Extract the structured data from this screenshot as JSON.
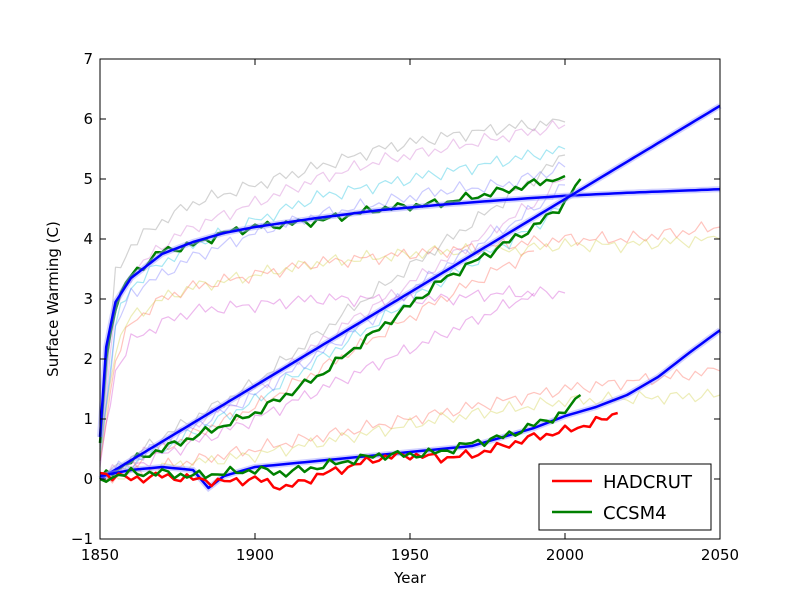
{
  "chart_data": {
    "type": "line",
    "title": "",
    "xlabel": "Year",
    "ylabel": "Surface Warming (C)",
    "xlim": [
      1850,
      2050
    ],
    "ylim": [
      -1,
      7
    ],
    "xticks": [
      1850,
      1900,
      1950,
      2000,
      2050
    ],
    "yticks": [
      -1,
      0,
      1,
      2,
      3,
      4,
      5,
      6,
      7
    ],
    "grid": false,
    "legend": {
      "position": "lower-right",
      "entries": [
        {
          "label": "HADCRUT",
          "color": "#ff0000"
        },
        {
          "label": "CCSM4",
          "color": "#008000"
        }
      ]
    },
    "series": [
      {
        "name": "HADCRUT",
        "color": "#ff0000",
        "x": [
          1850,
          1860,
          1870,
          1880,
          1890,
          1900,
          1910,
          1920,
          1930,
          1940,
          1950,
          1960,
          1970,
          1980,
          1990,
          2000,
          2010,
          2017
        ],
        "y": [
          0.1,
          0.0,
          0.05,
          0.0,
          -0.05,
          0.0,
          -0.15,
          0.05,
          0.2,
          0.35,
          0.4,
          0.35,
          0.4,
          0.55,
          0.7,
          0.8,
          0.95,
          1.1
        ]
      },
      {
        "name": "CCSM4",
        "color": "#008000",
        "x": [
          1850,
          1860,
          1870,
          1880,
          1890,
          1900,
          1910,
          1920,
          1930,
          1940,
          1950,
          1960,
          1970,
          1980,
          1990,
          2000,
          2005
        ],
        "y": [
          0.0,
          0.1,
          0.1,
          0.05,
          0.1,
          0.15,
          0.1,
          0.2,
          0.3,
          0.4,
          0.4,
          0.45,
          0.6,
          0.7,
          0.9,
          1.1,
          1.4
        ]
      },
      {
        "color": "#008000",
        "x": [
          1850,
          1852,
          1855,
          1860,
          1870,
          1880,
          1890,
          1900,
          1920,
          1940,
          1960,
          1980,
          2000
        ],
        "y": [
          0.6,
          2.0,
          2.9,
          3.4,
          3.8,
          3.9,
          4.1,
          4.2,
          4.3,
          4.5,
          4.6,
          4.8,
          5.05
        ]
      },
      {
        "color": "#008000",
        "x": [
          1850,
          1860,
          1870,
          1880,
          1890,
          1900,
          1910,
          1920,
          1930,
          1940,
          1950,
          1960,
          1970,
          1980,
          1990,
          2000,
          2005
        ],
        "y": [
          0.0,
          0.3,
          0.5,
          0.7,
          0.9,
          1.1,
          1.4,
          1.7,
          2.1,
          2.5,
          2.9,
          3.3,
          3.6,
          3.9,
          4.2,
          4.6,
          5.0
        ]
      },
      {
        "color": "#0000ff",
        "x": [
          1850,
          1852,
          1855,
          1860,
          1870,
          1880,
          1890,
          1900,
          1920,
          1940,
          1960,
          1980,
          2000,
          2020,
          2050
        ],
        "y": [
          0.7,
          2.2,
          2.95,
          3.35,
          3.75,
          3.95,
          4.1,
          4.2,
          4.35,
          4.48,
          4.57,
          4.65,
          4.72,
          4.77,
          4.83
        ]
      },
      {
        "color": "#0000ff",
        "x": [
          1850,
          2050
        ],
        "y": [
          0.0,
          6.22
        ]
      },
      {
        "color": "#0000ff",
        "x": [
          1850,
          1860,
          1870,
          1880,
          1885,
          1890,
          1900,
          1910,
          1920,
          1930,
          1940,
          1950,
          1960,
          1970,
          1980,
          1990,
          2000,
          2010,
          2020,
          2030,
          2040,
          2050
        ],
        "y": [
          0.05,
          0.15,
          0.2,
          0.15,
          -0.15,
          0.05,
          0.2,
          0.25,
          0.3,
          0.35,
          0.4,
          0.45,
          0.5,
          0.55,
          0.7,
          0.85,
          1.05,
          1.2,
          1.4,
          1.7,
          2.1,
          2.48
        ]
      },
      {
        "color": "#808080",
        "x": [
          1850,
          1855,
          1860,
          1870,
          1880,
          1900,
          1920,
          1940,
          1960,
          1980,
          2000
        ],
        "y": [
          0.5,
          3.4,
          3.9,
          4.3,
          4.6,
          4.9,
          5.2,
          5.5,
          5.7,
          5.85,
          5.95
        ]
      },
      {
        "color": "#cc66cc",
        "x": [
          1850,
          1855,
          1860,
          1870,
          1880,
          1900,
          1920,
          1940,
          1960,
          1980,
          2000
        ],
        "y": [
          0.5,
          2.8,
          3.4,
          3.9,
          4.2,
          4.6,
          5.0,
          5.3,
          5.5,
          5.7,
          5.9
        ]
      },
      {
        "color": "#00bbdd",
        "x": [
          1850,
          1855,
          1860,
          1870,
          1880,
          1900,
          1920,
          1940,
          1960,
          1980,
          2000
        ],
        "y": [
          0.3,
          2.6,
          3.2,
          3.6,
          3.9,
          4.3,
          4.7,
          4.9,
          5.1,
          5.3,
          5.5
        ]
      },
      {
        "color": "#6666ff",
        "x": [
          1850,
          1855,
          1860,
          1870,
          1880,
          1900,
          1920,
          1940,
          1960,
          1980,
          2000
        ],
        "y": [
          0.4,
          2.5,
          3.1,
          3.4,
          3.7,
          4.1,
          4.4,
          4.6,
          4.8,
          4.9,
          5.2
        ]
      },
      {
        "color": "#ff5544",
        "x": [
          1850,
          1855,
          1860,
          1870,
          1880,
          1900,
          1920,
          1940,
          1960,
          1980,
          2000,
          2020,
          2050
        ],
        "y": [
          0.3,
          2.0,
          2.6,
          3.0,
          3.2,
          3.4,
          3.6,
          3.7,
          3.8,
          3.9,
          4.0,
          4.0,
          4.2
        ]
      },
      {
        "color": "#cccc33",
        "x": [
          1850,
          1855,
          1860,
          1870,
          1880,
          1900,
          1920,
          1940,
          1960,
          1980,
          2000,
          2020,
          2050
        ],
        "y": [
          0.3,
          2.2,
          2.7,
          3.0,
          3.2,
          3.4,
          3.6,
          3.7,
          3.8,
          3.8,
          3.9,
          3.9,
          4.0
        ]
      },
      {
        "color": "#cc33cc",
        "x": [
          1850,
          1855,
          1860,
          1870,
          1880,
          1900,
          1920,
          1940,
          1960,
          1980,
          2000
        ],
        "y": [
          0.2,
          1.8,
          2.3,
          2.6,
          2.8,
          2.9,
          3.0,
          3.0,
          3.0,
          3.1,
          3.1
        ]
      },
      {
        "color": "#808080",
        "x": [
          1850,
          1870,
          1900,
          1930,
          1960,
          1990,
          2000
        ],
        "y": [
          0.0,
          0.7,
          1.6,
          2.8,
          3.9,
          5.0,
          5.4
        ]
      },
      {
        "color": "#cc66cc",
        "x": [
          1850,
          1870,
          1900,
          1930,
          1960,
          1990,
          2000
        ],
        "y": [
          0.0,
          0.6,
          1.5,
          2.6,
          3.6,
          4.6,
          5.0
        ]
      },
      {
        "color": "#00bbdd",
        "x": [
          1850,
          1870,
          1900,
          1930,
          1960,
          1990,
          2000
        ],
        "y": [
          0.0,
          0.5,
          1.3,
          2.3,
          3.3,
          4.2,
          4.6
        ]
      },
      {
        "color": "#6666ff",
        "x": [
          1850,
          1870,
          1900,
          1930,
          1960,
          1990,
          2000
        ],
        "y": [
          0.0,
          0.6,
          1.4,
          2.4,
          3.5,
          4.5,
          4.9
        ]
      },
      {
        "color": "#ff5544",
        "x": [
          1850,
          1870,
          1900,
          1930,
          1960,
          1990
        ],
        "y": [
          0.0,
          0.5,
          1.2,
          2.1,
          3.0,
          3.8
        ]
      },
      {
        "color": "#cc33cc",
        "x": [
          1850,
          1870,
          1900,
          1930,
          1960,
          1990
        ],
        "y": [
          0.0,
          0.4,
          1.0,
          1.7,
          2.4,
          3.1
        ]
      },
      {
        "color": "#ff5544",
        "x": [
          1850,
          1870,
          1900,
          1930,
          1960,
          2000,
          2050
        ],
        "y": [
          0.0,
          0.2,
          0.5,
          0.8,
          1.1,
          1.5,
          1.8
        ]
      },
      {
        "color": "#cccc33",
        "x": [
          1850,
          1870,
          1900,
          1930,
          1960,
          2000,
          2050
        ],
        "y": [
          0.0,
          0.2,
          0.4,
          0.7,
          1.0,
          1.3,
          1.4
        ]
      }
    ]
  }
}
